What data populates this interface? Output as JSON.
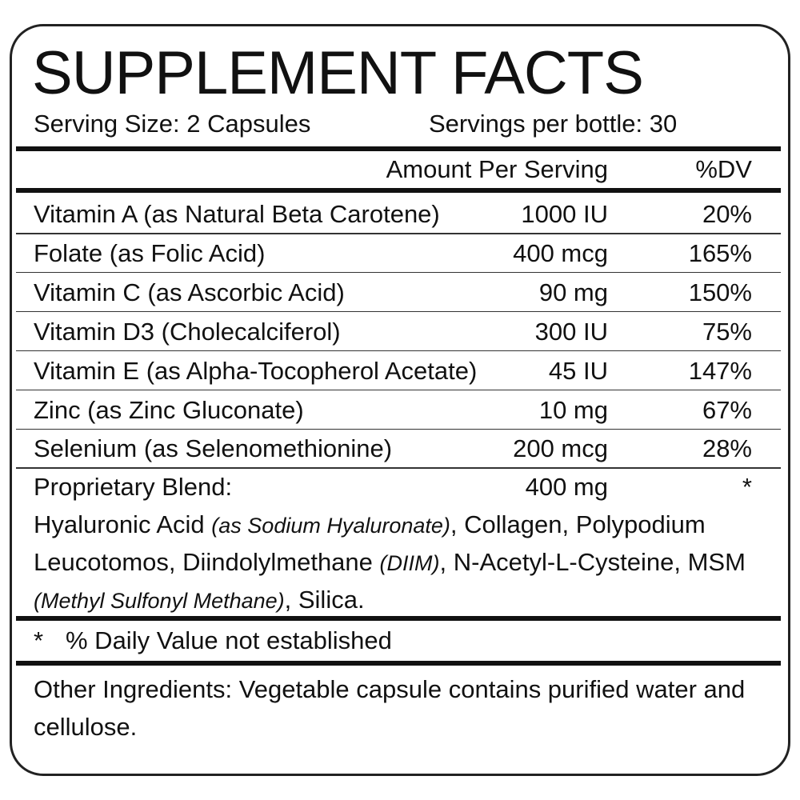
{
  "title": "SUPPLEMENT FACTS",
  "serving": {
    "size": "Serving Size: 2 Capsules",
    "per_container": "Servings per bottle: 30"
  },
  "header": {
    "amount": "Amount Per Serving",
    "dv": "%DV"
  },
  "rows": [
    [
      "Vitamin A (as Natural Beta Carotene)",
      "1000 IU",
      "20%"
    ],
    [
      "Folate (as Folic Acid)",
      "400 mcg",
      "165%"
    ],
    [
      "Vitamin C (as Ascorbic Acid)",
      "90 mg",
      "150%"
    ],
    [
      "Vitamin D3 (Cholecalciferol)",
      "300 IU",
      "75%"
    ],
    [
      "Vitamin E (as Alpha-Tocopherol Acetate)",
      "45 IU",
      "147%"
    ],
    [
      "Zinc (as Zinc Gluconate)",
      "10 mg",
      "67%"
    ],
    [
      "Selenium (as Selenomethionine)",
      "200 mcg",
      "28%"
    ]
  ],
  "blend": {
    "name": "Proprietary Blend:",
    "amount": "400 mg",
    "dv": "*",
    "ingredients": [
      "Hyaluronic Acid ",
      "(as Sodium Hyaluronate)",
      ", Collagen, Polypodium Leucotomos, Diindolylmethane ",
      "(DIIM)",
      ", N-Acetyl-L-Cysteine, MSM ",
      "(Methyl Sulfonyl Methane)",
      ", Silica."
    ]
  },
  "footnote": {
    "symbol": "*",
    "text": "% Daily Value not established"
  },
  "other": "Other Ingredients: Vegetable capsule contains purified water and cellulose."
}
